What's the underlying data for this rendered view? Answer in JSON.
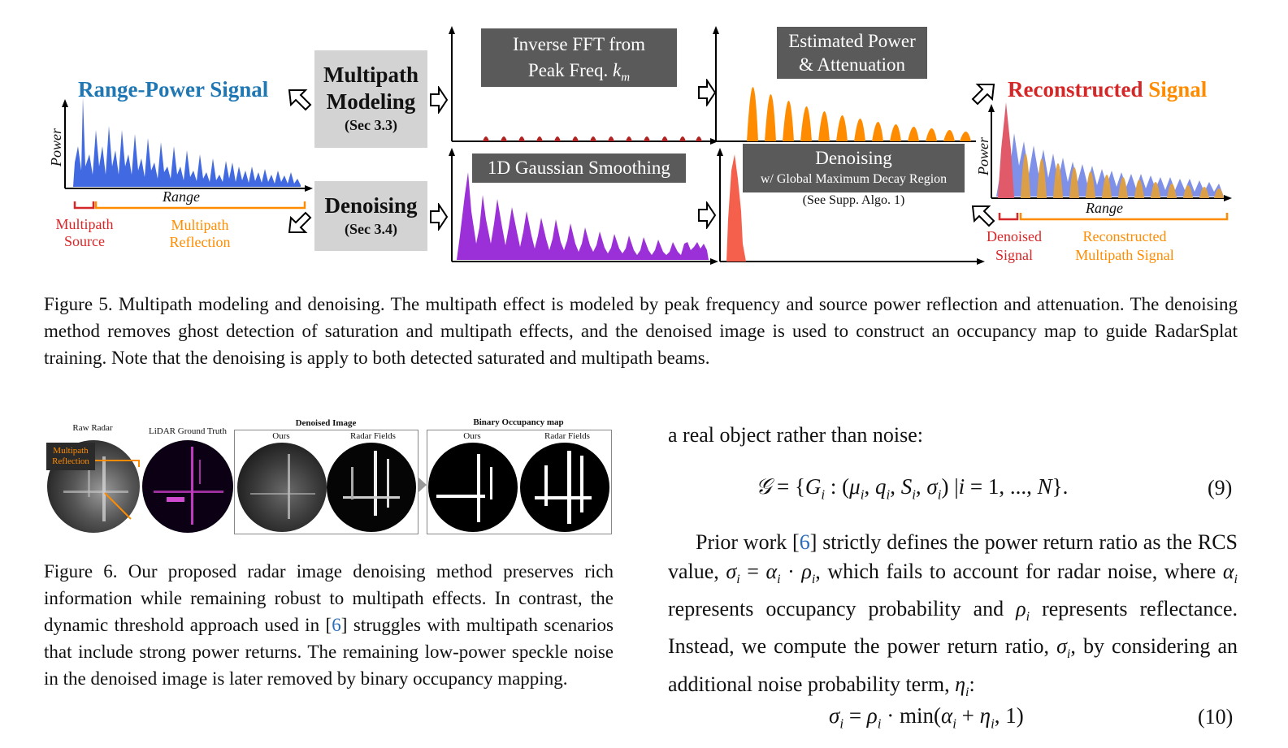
{
  "figure5": {
    "range_power_title": "Range-Power Signal",
    "power_axis": "Power",
    "range_axis": "Range",
    "multipath_source": [
      "Multipath",
      "Source"
    ],
    "multipath_reflection": [
      "Multipath",
      "Reflection"
    ],
    "multipath_modeling": [
      "Multipath",
      "Modeling"
    ],
    "multipath_modeling_sec": "(Sec 3.3)",
    "denoising": "Denoising",
    "denoising_sec": "(Sec 3.4)",
    "inverse_fft": [
      "Inverse FFT from",
      "Peak Freq. "
    ],
    "inverse_fft_var": "k",
    "inverse_fft_sub": "m",
    "estimated_power": [
      "Estimated Power",
      "& Attenuation"
    ],
    "gaussian_smoothing": "1D Gaussian Smoothing",
    "denoising_box_title": "Denoising",
    "denoising_box_sub": "w/ Global Maximum Decay Region",
    "see_supp": "(See Supp. Algo. 1)",
    "reconstructed": "Reconstructed",
    "signal": "Signal",
    "denoised_signal": [
      "Denoised",
      "Signal"
    ],
    "reconstructed_multipath": [
      "Reconstructed",
      "Multipath Signal"
    ],
    "colors": {
      "blue_title": "#1f77b4",
      "blue_fill": "#4169e1",
      "red": "#d62728",
      "orange": "#ff8c00",
      "purple": "#9b30d9",
      "salmon": "#f4604c",
      "darkred": "#b22222",
      "pinkred": "#e05a6a"
    }
  },
  "fig5_caption": "Figure 5. Multipath modeling and denoising. The multipath effect is modeled by peak frequency and source power reflection and attenuation. The denoising method removes ghost detection of saturation and multipath effects, and the denoised image is used to construct an occupancy map to guide RadarSplat training. Note that the denoising is apply to both detected saturated and multipath beams.",
  "figure6": {
    "raw_radar": "Raw Radar",
    "lidar_gt": "LiDAR Ground Truth",
    "denoised_image": "Denoised Image",
    "binary_occupancy": "Binary Occupancy map",
    "ours": "Ours",
    "radar_fields": "Radar Fields",
    "multipath_reflection": [
      "Multipath",
      "Reflection"
    ]
  },
  "fig6_caption": {
    "part1": "Figure 6. Our proposed radar image denoising method preserves rich information while remaining robust to multipath effects. In contrast, the dynamic threshold approach used in [",
    "ref": "6",
    "part2": "] struggles with multipath scenarios that include strong power returns. The remaining low-power speckle noise in the denoised image is later removed by binary occupancy mapping."
  },
  "right_col": {
    "lead": "a real object rather than noise:",
    "eq9_num": "(9)",
    "para_a": "Prior work [",
    "para_ref": "6",
    "para_b": "] strictly defines the power return ratio as the RCS value, ",
    "para_c": ", which fails to account for radar noise, where ",
    "para_d": " represents occupancy probability and ",
    "para_e": " represents reflectance. Instead, we compute the power return ratio, ",
    "para_f": ", by considering an additional noise probability term, ",
    "para_g": ":",
    "eq10_num": "(10)"
  }
}
